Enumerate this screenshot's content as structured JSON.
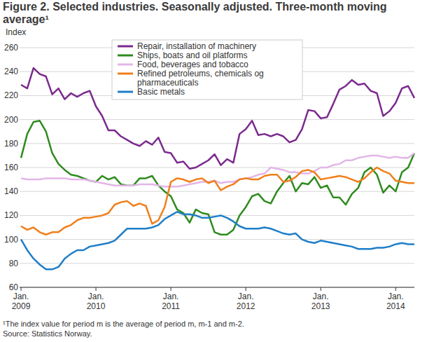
{
  "chart_data": {
    "type": "line",
    "title": "Figure 2. Selected industries. Seasonally adjusted. Three-month moving average¹",
    "y_label": "Index",
    "footnote": "¹The index value for period m is the average of period m, m-1 and m-2.",
    "source": "Source: Statistics Norway.",
    "categories": [
      "Jan. 2009",
      null,
      null,
      null,
      null,
      null,
      null,
      null,
      null,
      null,
      null,
      null,
      "Jan. 2010",
      null,
      null,
      null,
      null,
      null,
      null,
      null,
      null,
      null,
      null,
      null,
      "Jan. 2011",
      null,
      null,
      null,
      null,
      null,
      null,
      null,
      null,
      null,
      null,
      null,
      "Jan. 2012",
      null,
      null,
      null,
      null,
      null,
      null,
      null,
      null,
      null,
      null,
      null,
      "Jan. 2013",
      null,
      null,
      null,
      null,
      null,
      null,
      null,
      null,
      null,
      null,
      null,
      "Jan. 2014",
      null,
      null,
      null
    ],
    "ylim": [
      60,
      260
    ],
    "yticks": [
      60,
      80,
      100,
      120,
      140,
      160,
      180,
      200,
      220,
      240,
      260
    ],
    "grid": true,
    "series": [
      {
        "name": "Repair, installation of machinery",
        "color": "#7b2a8e",
        "values": [
          229,
          226,
          243,
          238,
          236,
          221,
          226,
          217,
          222,
          219,
          222,
          224,
          211,
          203,
          191,
          191,
          186,
          183,
          180,
          178,
          182,
          179,
          185,
          173,
          172,
          164,
          165,
          159,
          160,
          163,
          166,
          171,
          162,
          167,
          164,
          188,
          192,
          199,
          187,
          188,
          186,
          188,
          186,
          181,
          183,
          192,
          208,
          207,
          201,
          202,
          213,
          225,
          228,
          233,
          229,
          230,
          224,
          222,
          203,
          207,
          214,
          226,
          228,
          218
        ]
      },
      {
        "name": "Ships, boats and oil platforms",
        "color": "#2e8b1e",
        "values": [
          168,
          188,
          198,
          199,
          190,
          172,
          163,
          158,
          154,
          153,
          151,
          149,
          148,
          153,
          150,
          152,
          146,
          145,
          145,
          151,
          151,
          153,
          145,
          140,
          136,
          125,
          122,
          114,
          125,
          122,
          121,
          106,
          104,
          104,
          108,
          120,
          127,
          136,
          138,
          132,
          130,
          140,
          147,
          153,
          140,
          147,
          146,
          152,
          143,
          145,
          135,
          135,
          129,
          138,
          143,
          156,
          160,
          154,
          139,
          145,
          140,
          156,
          160,
          172
        ]
      },
      {
        "name": "Food, beverages and tobacco",
        "color": "#e2b6e6",
        "values": [
          151,
          150,
          150,
          150,
          151,
          151,
          151,
          151,
          150,
          150,
          150,
          149,
          148,
          147,
          146,
          145,
          145,
          145,
          145,
          146,
          146,
          146,
          145,
          144,
          144,
          144,
          145,
          146,
          147,
          148,
          148,
          149,
          147,
          148,
          148,
          150,
          151,
          152,
          154,
          155,
          160,
          159,
          158,
          156,
          156,
          155,
          155,
          157,
          160,
          160,
          162,
          163,
          166,
          166,
          168,
          169,
          170,
          170,
          169,
          168,
          169,
          168,
          168,
          172
        ]
      },
      {
        "name": "Refined petroleums, chemicals og pharmaceuticals",
        "color": "#f07f1b",
        "values": [
          111,
          108,
          110,
          106,
          104,
          106,
          106,
          110,
          112,
          116,
          118,
          118,
          119,
          120,
          122,
          129,
          131,
          132,
          128,
          130,
          128,
          113,
          116,
          127,
          148,
          151,
          150,
          148,
          150,
          151,
          147,
          149,
          141,
          144,
          146,
          150,
          151,
          150,
          150,
          153,
          154,
          154,
          148,
          149,
          152,
          157,
          158,
          156,
          150,
          151,
          152,
          153,
          152,
          150,
          148,
          151,
          156,
          160,
          157,
          155,
          149,
          148,
          147,
          147
        ]
      },
      {
        "name": "Basic metals",
        "color": "#1f7ec8",
        "values": [
          100,
          91,
          84,
          79,
          75,
          75,
          77,
          84,
          88,
          91,
          91,
          94,
          95,
          96,
          97,
          99,
          104,
          109,
          109,
          109,
          109,
          110,
          112,
          117,
          120,
          123,
          121,
          121,
          120,
          118,
          118,
          119,
          120,
          118,
          115,
          111,
          109,
          109,
          109,
          110,
          109,
          107,
          105,
          104,
          105,
          100,
          98,
          97,
          99,
          98,
          97,
          96,
          95,
          94,
          92,
          92,
          92,
          93,
          93,
          94,
          96,
          97,
          96,
          96
        ]
      }
    ]
  }
}
